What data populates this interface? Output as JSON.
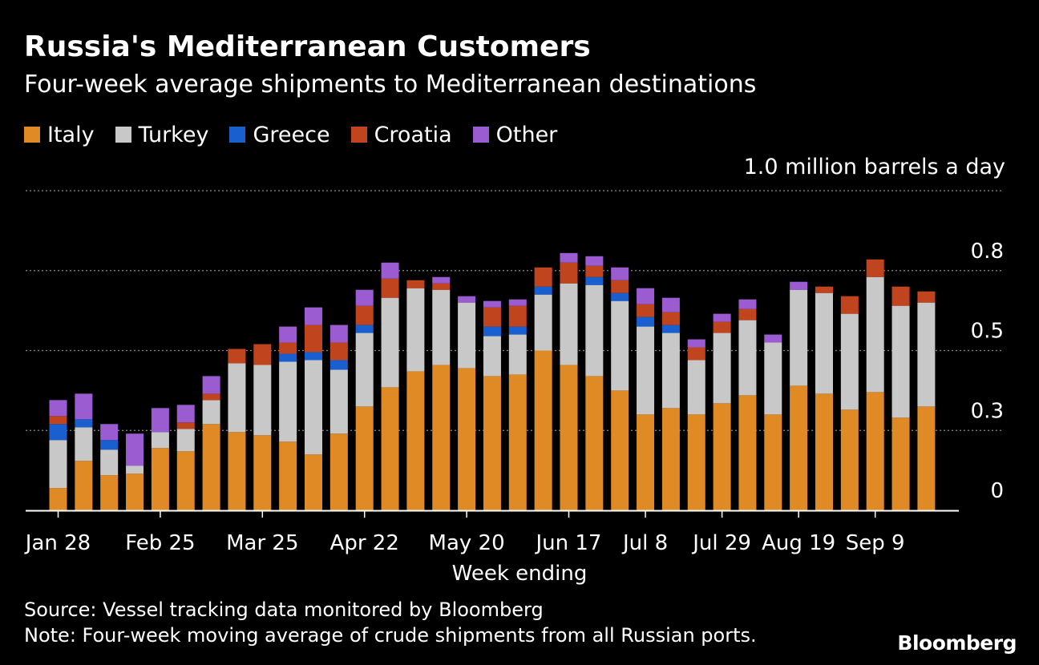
{
  "chart_data": {
    "type": "bar",
    "stacked": true,
    "title": "Russia's Mediterranean Customers",
    "subtitle": "Four-week average shipments to Mediterranean destinations",
    "unit_label": "1.0 million barrels a day",
    "xlabel": "Week ending",
    "ylabel": "",
    "ylim": [
      0,
      1.0
    ],
    "y_ticks": [
      {
        "value": 0,
        "label": "0"
      },
      {
        "value": 0.25,
        "label": "0.3"
      },
      {
        "value": 0.5,
        "label": "0.5"
      },
      {
        "value": 0.75,
        "label": "0.8"
      },
      {
        "value": 1.0,
        "label": ""
      }
    ],
    "x_tick_labels": [
      {
        "index": 0,
        "label": "Jan 28"
      },
      {
        "index": 4,
        "label": "Feb 25"
      },
      {
        "index": 8,
        "label": "Mar 25"
      },
      {
        "index": 12,
        "label": "Apr 22"
      },
      {
        "index": 16,
        "label": "May 20"
      },
      {
        "index": 20,
        "label": "Jun 17"
      },
      {
        "index": 23,
        "label": "Jul 8"
      },
      {
        "index": 26,
        "label": "Jul 29"
      },
      {
        "index": 29,
        "label": "Aug 19"
      },
      {
        "index": 32,
        "label": "Sep 9"
      }
    ],
    "legend_placement": "top-left",
    "series": [
      {
        "name": "Italy",
        "color": "#e08a25",
        "values": [
          0.07,
          0.155,
          0.11,
          0.115,
          0.195,
          0.185,
          0.27,
          0.245,
          0.235,
          0.215,
          0.175,
          0.24,
          0.325,
          0.385,
          0.435,
          0.455,
          0.445,
          0.42,
          0.425,
          0.5,
          0.455,
          0.42,
          0.375,
          0.3,
          0.32,
          0.3,
          0.335,
          0.36,
          0.3,
          0.39,
          0.365,
          0.315,
          0.37,
          0.29,
          0.325
        ]
      },
      {
        "name": "Turkey",
        "color": "#c8c8c8",
        "values": [
          0.15,
          0.105,
          0.08,
          0.025,
          0.05,
          0.07,
          0.075,
          0.215,
          0.22,
          0.25,
          0.295,
          0.2,
          0.23,
          0.28,
          0.26,
          0.235,
          0.205,
          0.125,
          0.125,
          0.175,
          0.255,
          0.285,
          0.28,
          0.275,
          0.235,
          0.17,
          0.22,
          0.235,
          0.225,
          0.3,
          0.315,
          0.3,
          0.36,
          0.35,
          0.325
        ]
      },
      {
        "name": "Greece",
        "color": "#1a5fd0",
        "values": [
          0.05,
          0.025,
          0.03,
          0,
          0,
          0,
          0,
          0,
          0,
          0.025,
          0.025,
          0.03,
          0.025,
          0,
          0,
          0,
          0,
          0.03,
          0.025,
          0.025,
          0,
          0.025,
          0.025,
          0.03,
          0.025,
          0,
          0,
          0,
          0,
          0,
          0,
          0,
          0,
          0,
          0
        ]
      },
      {
        "name": "Croatia",
        "color": "#c0441d",
        "values": [
          0.025,
          0,
          0,
          0,
          0,
          0.02,
          0.02,
          0.045,
          0.065,
          0.035,
          0.085,
          0.055,
          0.06,
          0.06,
          0.025,
          0.02,
          0,
          0.06,
          0.065,
          0.06,
          0.065,
          0.035,
          0.04,
          0.04,
          0.04,
          0.04,
          0.035,
          0.035,
          0,
          0,
          0.02,
          0.055,
          0.055,
          0.06,
          0.035
        ]
      },
      {
        "name": "Other",
        "color": "#9b5bd1",
        "values": [
          0.05,
          0.08,
          0.05,
          0.1,
          0.075,
          0.055,
          0.055,
          0,
          0,
          0.05,
          0.055,
          0.055,
          0.05,
          0.05,
          0,
          0.02,
          0.02,
          0.02,
          0.02,
          0,
          0.03,
          0.03,
          0.04,
          0.05,
          0.045,
          0.025,
          0.025,
          0.03,
          0.025,
          0.025,
          0,
          0,
          0,
          0,
          0
        ]
      }
    ]
  },
  "footer": {
    "source": "Source: Vessel tracking data monitored by Bloomberg",
    "note": "Note: Four-week moving average of crude shipments from all Russian ports.",
    "brand": "Bloomberg"
  }
}
